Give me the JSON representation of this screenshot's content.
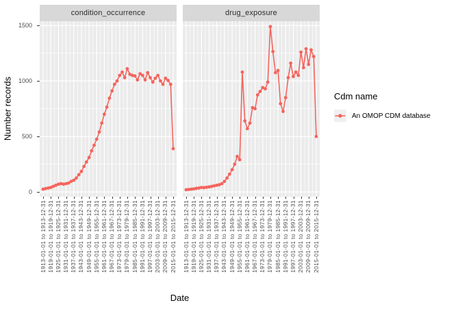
{
  "chart_data": {
    "type": "line",
    "xlabel": "Date",
    "ylabel": "Number records",
    "xlim": [
      1913,
      2015
    ],
    "ylim": [
      0,
      1500
    ],
    "y_ticks": [
      0,
      500,
      1000,
      1500
    ],
    "grid": "on",
    "legend_position": "right",
    "panel_bg": "#ebebeb",
    "strip_bg": "#d8d8d8",
    "grid_color": "#ffffff",
    "tick_text_color": "#4d4d4d",
    "series_name": "An OMOP CDM database",
    "series_color": "#f4645d",
    "x_tick_years": [
      1913,
      1919,
      1925,
      1931,
      1937,
      1943,
      1949,
      1955,
      1961,
      1967,
      1973,
      1979,
      1985,
      1991,
      1997,
      2003,
      2009,
      2015
    ],
    "x_tick_labels": [
      "1913-01-01 to 1913-12-31",
      "1919-01-01 to 1919-12-31",
      "1925-01-01 to 1925-12-31",
      "1931-01-01 to 1931-12-31",
      "1937-01-01 to 1937-12-31",
      "1943-01-01 to 1943-12-31",
      "1949-01-01 to 1949-12-31",
      "1955-01-01 to 1955-12-31",
      "1961-01-01 to 1961-12-31",
      "1967-01-01 to 1967-12-31",
      "1973-01-01 to 1973-12-31",
      "1979-01-01 to 1979-12-31",
      "1985-01-01 to 1985-12-31",
      "1991-01-01 to 1991-12-31",
      "1997-01-01 to 1997-12-31",
      "2003-01-01 to 2003-12-31",
      "2009-01-01 to 2009-12-31",
      "2015-01-01 to 2015-12-31"
    ],
    "x": [
      1913,
      1915,
      1917,
      1919,
      1921,
      1923,
      1925,
      1927,
      1929,
      1931,
      1933,
      1935,
      1937,
      1939,
      1941,
      1943,
      1945,
      1947,
      1949,
      1951,
      1953,
      1955,
      1957,
      1959,
      1961,
      1963,
      1965,
      1967,
      1969,
      1971,
      1973,
      1975,
      1977,
      1979,
      1981,
      1983,
      1985,
      1987,
      1989,
      1991,
      1993,
      1995,
      1997,
      1999,
      2001,
      2003,
      2005,
      2007,
      2009,
      2011,
      2013,
      2015
    ],
    "facets": [
      {
        "label": "condition_occurrence",
        "values": [
          25,
          30,
          35,
          40,
          50,
          60,
          70,
          75,
          70,
          75,
          80,
          95,
          105,
          125,
          155,
          185,
          230,
          270,
          310,
          370,
          420,
          475,
          540,
          620,
          700,
          765,
          845,
          910,
          970,
          1000,
          1050,
          1080,
          1030,
          1110,
          1060,
          1050,
          1045,
          1010,
          1065,
          1050,
          1010,
          1075,
          1030,
          990,
          1025,
          1050,
          1000,
          970,
          1025,
          1005,
          970,
          390
        ]
      },
      {
        "label": "drug_exposure",
        "values": [
          20,
          22,
          25,
          28,
          32,
          35,
          40,
          38,
          42,
          45,
          50,
          55,
          60,
          65,
          75,
          95,
          125,
          160,
          200,
          250,
          320,
          290,
          1080,
          640,
          570,
          620,
          760,
          750,
          875,
          905,
          940,
          930,
          990,
          1490,
          1265,
          1075,
          1095,
          795,
          725,
          850,
          1030,
          1160,
          1040,
          1080,
          1050,
          1260,
          1120,
          1290,
          1150,
          1280,
          1220,
          500
        ]
      }
    ]
  },
  "legend": {
    "title": "Cdm name",
    "items": [
      {
        "label": "An OMOP CDM database",
        "color": "#f4645d",
        "key_bg": "#f0f0f0"
      }
    ]
  }
}
